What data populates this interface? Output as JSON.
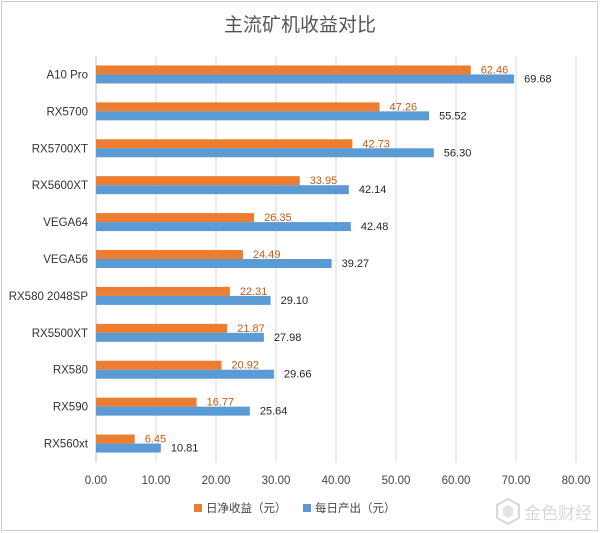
{
  "colors": {
    "net": "#ed7d31",
    "output": "#5b9bd5",
    "grid": "#d9d9d9",
    "axis": "#bfbfbf"
  },
  "watermark": {
    "text": "金色财经"
  },
  "chart_data": {
    "type": "bar",
    "orientation": "horizontal",
    "title": "主流矿机收益对比",
    "categories": [
      "A10 Pro",
      "RX5700",
      "RX5700XT",
      "RX5600XT",
      "VEGA64",
      "VEGA56",
      "RX580 2048SP",
      "RX5500XT",
      "RX580",
      "RX590",
      "RX560xt"
    ],
    "series": [
      {
        "name": "日净收益（元）",
        "color": "#ed7d31",
        "values": [
          62.46,
          47.26,
          42.73,
          33.95,
          26.35,
          24.49,
          22.31,
          21.87,
          20.92,
          16.77,
          6.45
        ],
        "labels": [
          "62.46",
          "47.26",
          "42.73",
          "33.95",
          "26.35",
          "24.49",
          "22.31",
          "21.87",
          "20.92",
          "16.77",
          "6.45"
        ]
      },
      {
        "name": "每日产出（元）",
        "color": "#5b9bd5",
        "values": [
          69.68,
          55.52,
          56.3,
          42.14,
          42.48,
          39.27,
          29.1,
          27.98,
          29.66,
          25.64,
          10.81
        ],
        "labels": [
          "69.68",
          "55.52",
          "56.30",
          "42.14",
          "42.48",
          "39.27",
          "29.10",
          "27.98",
          "29.66",
          "25.64",
          "10.81"
        ]
      }
    ],
    "xlim": [
      0,
      80
    ],
    "xticks": [
      "0.00",
      "10.00",
      "20.00",
      "30.00",
      "40.00",
      "50.00",
      "60.00",
      "70.00",
      "80.00"
    ],
    "grid": true,
    "legend_position": "bottom"
  }
}
